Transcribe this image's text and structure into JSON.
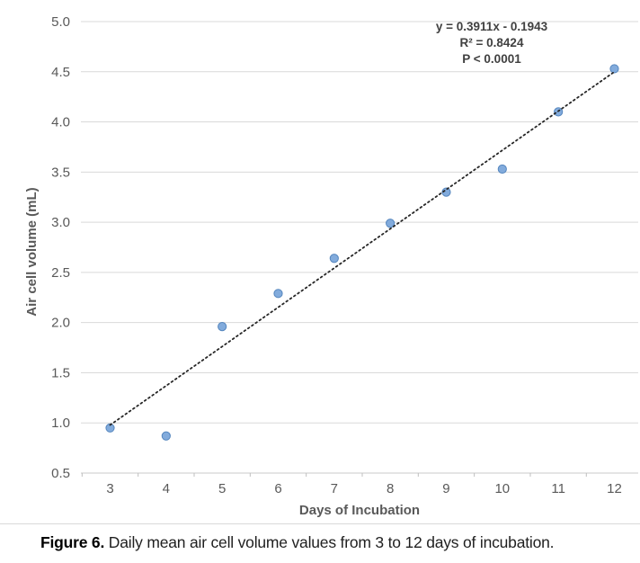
{
  "figure": {
    "caption_label": "Figure 6.",
    "caption_text": " Daily mean air cell volume values from 3 to 12 days of incubation."
  },
  "chart_data": {
    "type": "scatter",
    "title": "",
    "xlabel": "Days of Incubation",
    "ylabel": "Air cell volume (mL)",
    "x": [
      3,
      4,
      5,
      6,
      7,
      8,
      9,
      10,
      11,
      12
    ],
    "y": [
      0.95,
      0.87,
      1.96,
      2.29,
      2.64,
      2.99,
      3.3,
      3.53,
      4.1,
      4.53
    ],
    "xticks": [
      "3",
      "4",
      "5",
      "6",
      "7",
      "8",
      "9",
      "10",
      "11",
      "12"
    ],
    "yticks": [
      "0.5",
      "1.0",
      "1.5",
      "2.0",
      "2.5",
      "3.0",
      "3.5",
      "4.0",
      "4.5",
      "5.0"
    ],
    "xlim": [
      2.5,
      12.5
    ],
    "ylim": [
      0.5,
      5.0
    ],
    "grid": "horizontal",
    "legend": "none",
    "trendline": {
      "slope": 0.3911,
      "intercept": -0.1943,
      "style": "dotted",
      "x_start": 3,
      "x_end": 12
    },
    "annotation_lines": [
      "y = 0.3911x - 0.1943",
      "R² = 0.8424",
      "P < 0.0001"
    ],
    "colors": {
      "marker_fill": "#82abdc",
      "marker_stroke": "#5586be",
      "gridline": "#d9d9d9",
      "axis_line": "#c9c9c9",
      "tick_mark": "#bfbfbf",
      "axis_text": "#595959",
      "axis_title_text": "#595959",
      "annotation_text": "#404040",
      "trendline_color": "#262626"
    }
  }
}
